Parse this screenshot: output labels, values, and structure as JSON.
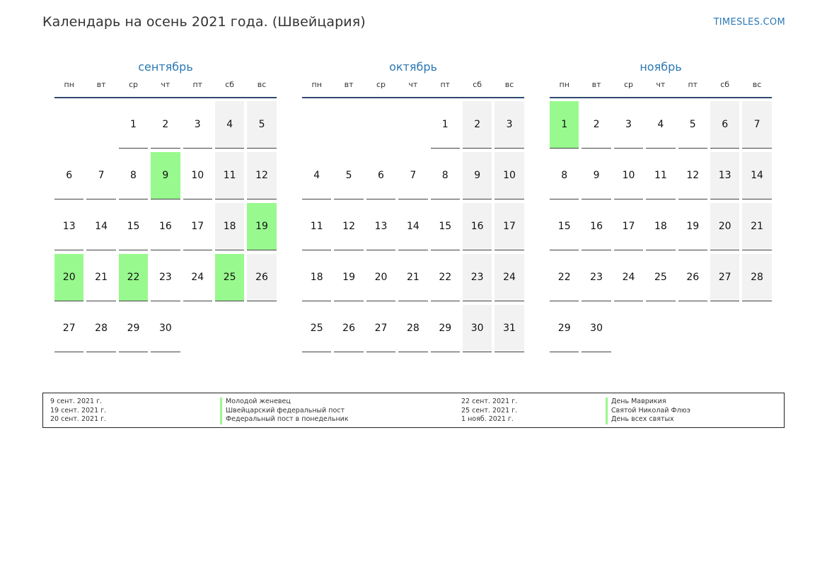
{
  "title": "Календарь на осень 2021 года. (Швейцария)",
  "site": "TIMESLES.COM",
  "colors": {
    "accent": "#2b78b4",
    "holiday": "#98f98e",
    "weekend": "#f2f2f2"
  },
  "weekdays": [
    "пн",
    "вт",
    "ср",
    "чт",
    "пт",
    "сб",
    "вс"
  ],
  "months": [
    {
      "name": "сентябрь",
      "offset": 2,
      "days": 30,
      "holidays": [
        9,
        19,
        20,
        22,
        25
      ]
    },
    {
      "name": "октябрь",
      "offset": 4,
      "days": 31,
      "holidays": []
    },
    {
      "name": "ноябрь",
      "offset": 0,
      "days": 30,
      "holidays": [
        1
      ]
    }
  ],
  "legend": [
    {
      "date": "9 сент. 2021 г.",
      "name": "Молодой женевец"
    },
    {
      "date": "19 сент. 2021 г.",
      "name": "Швейцарский федеральный пост"
    },
    {
      "date": "20 сент. 2021 г.",
      "name": "Федеральный пост в понедельник"
    },
    {
      "date": "22 сент. 2021 г.",
      "name": "День Маврикия"
    },
    {
      "date": "25 сент. 2021 г.",
      "name": "Святой Николай Флюэ"
    },
    {
      "date": "1 нояб. 2021 г.",
      "name": "День всех святых"
    }
  ]
}
